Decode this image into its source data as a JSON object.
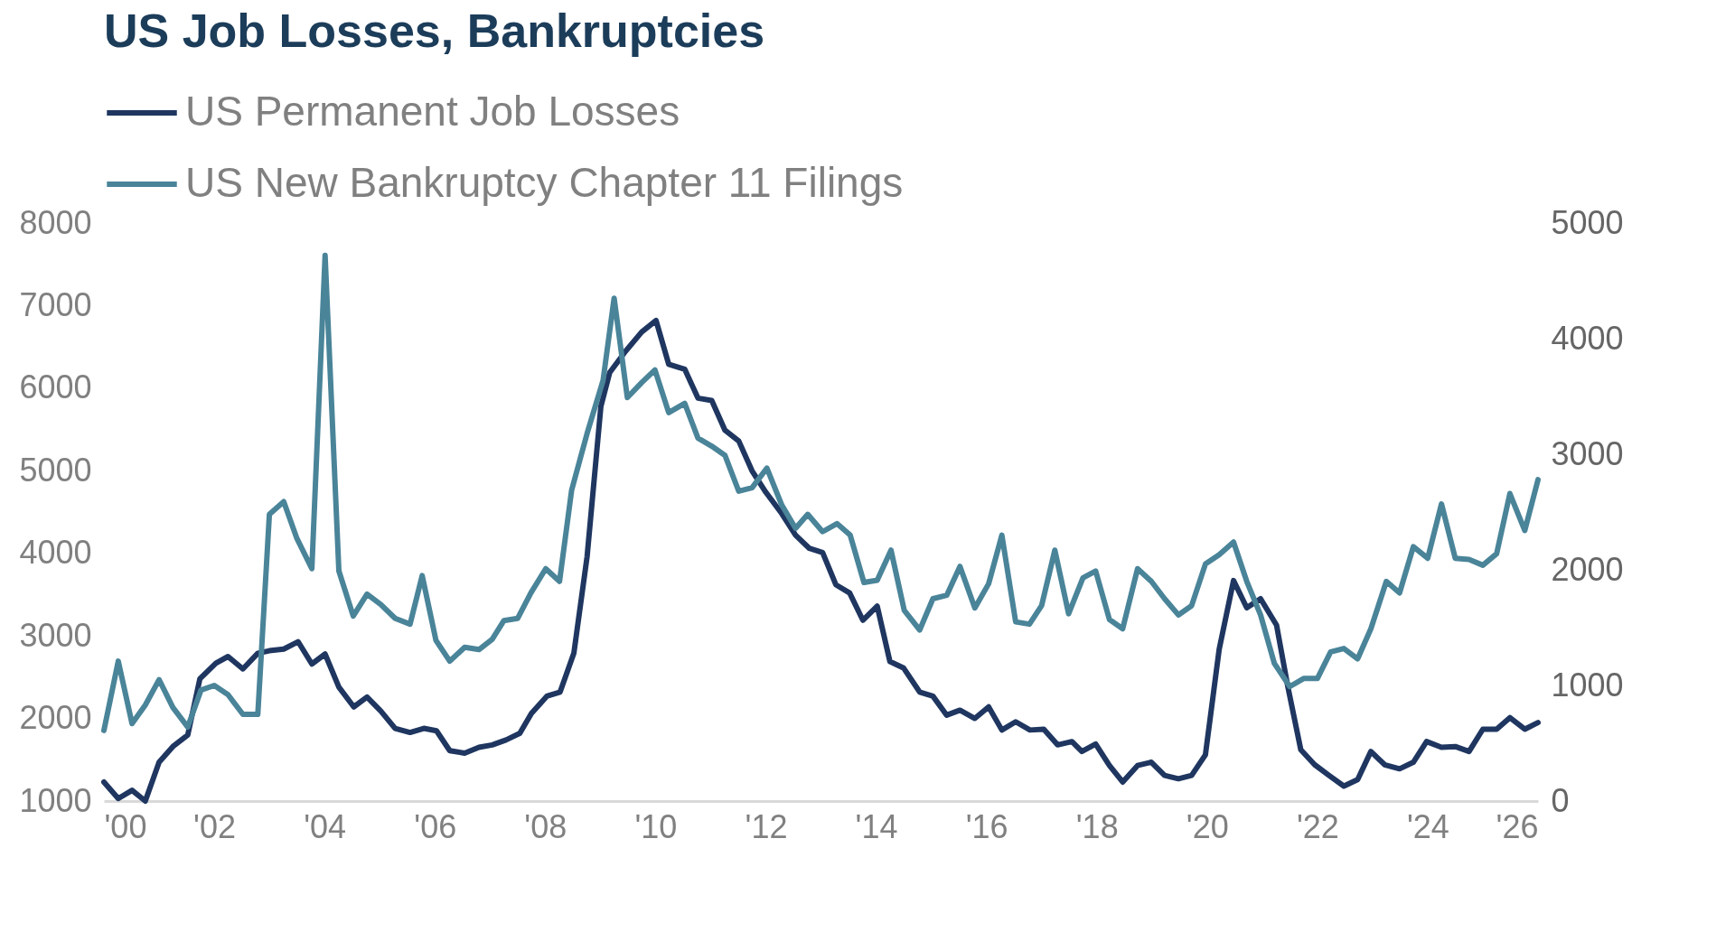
{
  "chart_data": {
    "type": "line",
    "title": "US Job Losses, Bankruptcies",
    "series": [
      {
        "name": "US Permanent Job Losses",
        "color": "#1f3660",
        "x": [
          2000.0,
          2000.26,
          2000.51,
          2000.75,
          2001.0,
          2001.25,
          2001.52,
          2001.74,
          2002.03,
          2002.25,
          2002.52,
          2002.79,
          2003.0,
          2003.26,
          2003.52,
          2003.77,
          2004.01,
          2004.26,
          2004.53,
          2004.77,
          2005.02,
          2005.28,
          2005.55,
          2005.8,
          2006.03,
          2006.27,
          2006.54,
          2006.8,
          2007.04,
          2007.29,
          2007.54,
          2007.75,
          2008.03,
          2008.27,
          2008.52,
          2008.76,
          2009.01,
          2009.17,
          2009.46,
          2009.75,
          2010.01,
          2010.24,
          2010.53,
          2010.77,
          2011.02,
          2011.26,
          2011.51,
          2011.75,
          2012.0,
          2012.29,
          2012.54,
          2012.79,
          2013.03,
          2013.27,
          2013.52,
          2013.76,
          2014.02,
          2014.25,
          2014.5,
          2014.79,
          2015.03,
          2015.28,
          2015.52,
          2015.79,
          2016.04,
          2016.28,
          2016.53,
          2016.79,
          2017.04,
          2017.29,
          2017.55,
          2017.73,
          2017.98,
          2018.23,
          2018.47,
          2018.74,
          2018.99,
          2019.23,
          2019.48,
          2019.72,
          2019.97,
          2020.22,
          2020.48,
          2020.72,
          2020.97,
          2021.26,
          2021.46,
          2021.7,
          2021.95,
          2022.21,
          2022.48,
          2022.73,
          2022.97,
          2023.22,
          2023.49,
          2023.74,
          2023.98,
          2024.25,
          2024.5,
          2024.75,
          2025.0,
          2025.25,
          2025.49,
          2025.76,
          2026.0
        ],
        "values": [
          1230,
          1030,
          1130,
          1000,
          1470,
          1660,
          1800,
          2480,
          2670,
          2750,
          2600,
          2790,
          2820,
          2840,
          2930,
          2660,
          2780,
          2380,
          2140,
          2260,
          2090,
          1880,
          1830,
          1880,
          1850,
          1610,
          1580,
          1650,
          1680,
          1740,
          1820,
          2060,
          2270,
          2320,
          2790,
          3960,
          5780,
          6190,
          6450,
          6680,
          6820,
          6290,
          6230,
          5880,
          5850,
          5490,
          5360,
          5000,
          4740,
          4480,
          4220,
          4060,
          4010,
          3620,
          3520,
          3190,
          3360,
          2690,
          2610,
          2320,
          2270,
          2040,
          2100,
          2000,
          2140,
          1860,
          1960,
          1860,
          1870,
          1680,
          1720,
          1600,
          1690,
          1430,
          1230,
          1430,
          1470,
          1310,
          1270,
          1310,
          1560,
          2840,
          3670,
          3340,
          3450,
          3130,
          2400,
          1620,
          1440,
          1310,
          1180,
          1260,
          1600,
          1440,
          1390,
          1470,
          1720,
          1650,
          1660,
          1600,
          1870,
          1870,
          2010,
          1870,
          1950
        ]
      },
      {
        "name": "US New Bankruptcy Chapter 11 Filings",
        "color": "#4a8499",
        "axis": "y2",
        "x": [
          2000.0,
          2000.26,
          2000.51,
          2000.75,
          2001.0,
          2001.25,
          2001.52,
          2001.76,
          2002.0,
          2002.25,
          2002.52,
          2002.79,
          2003.0,
          2003.26,
          2003.5,
          2003.77,
          2004.01,
          2004.26,
          2004.52,
          2004.77,
          2005.02,
          2005.28,
          2005.55,
          2005.77,
          2006.02,
          2006.27,
          2006.54,
          2006.8,
          2007.04,
          2007.25,
          2007.5,
          2007.74,
          2008.01,
          2008.26,
          2008.48,
          2008.76,
          2009.05,
          2009.25,
          2009.49,
          2009.75,
          2009.99,
          2010.24,
          2010.53,
          2010.77,
          2011.02,
          2011.26,
          2011.51,
          2011.75,
          2012.02,
          2012.29,
          2012.54,
          2012.76,
          2013.03,
          2013.29,
          2013.53,
          2013.78,
          2014.02,
          2014.27,
          2014.51,
          2014.79,
          2015.03,
          2015.28,
          2015.52,
          2015.79,
          2016.04,
          2016.28,
          2016.53,
          2016.78,
          2017.0,
          2017.24,
          2017.49,
          2017.75,
          2017.98,
          2018.23,
          2018.47,
          2018.74,
          2018.99,
          2019.23,
          2019.48,
          2019.72,
          2019.97,
          2020.22,
          2020.48,
          2020.72,
          2020.97,
          2021.22,
          2021.5,
          2021.75,
          2022.0,
          2022.24,
          2022.48,
          2022.73,
          2022.97,
          2023.25,
          2023.49,
          2023.74,
          2024.0,
          2024.25,
          2024.5,
          2024.75,
          2025.0,
          2025.25,
          2025.49,
          2025.76,
          2026.0
        ],
        "values": [
          610,
          1210,
          670,
          830,
          1050,
          810,
          640,
          960,
          1000,
          920,
          750,
          750,
          2480,
          2590,
          2270,
          2010,
          4720,
          1990,
          1600,
          1790,
          1700,
          1580,
          1530,
          1950,
          1390,
          1210,
          1330,
          1310,
          1400,
          1560,
          1580,
          1800,
          2010,
          1900,
          2690,
          3180,
          3640,
          4350,
          3490,
          3620,
          3730,
          3360,
          3440,
          3140,
          3070,
          2990,
          2680,
          2710,
          2880,
          2560,
          2360,
          2480,
          2330,
          2400,
          2300,
          1890,
          1910,
          2170,
          1650,
          1480,
          1750,
          1780,
          2030,
          1670,
          1880,
          2300,
          1550,
          1530,
          1690,
          2170,
          1620,
          1930,
          1990,
          1570,
          1490,
          2010,
          1900,
          1750,
          1610,
          1690,
          2050,
          2130,
          2240,
          1900,
          1610,
          1190,
          990,
          1060,
          1060,
          1290,
          1320,
          1230,
          1490,
          1900,
          1800,
          2200,
          2100,
          2570,
          2100,
          2090,
          2040,
          2140,
          2660,
          2340,
          2780
        ]
      }
    ],
    "xlim": [
      2000,
      2026
    ],
    "xticks": [
      {
        "value": 2000,
        "label": "'00"
      },
      {
        "value": 2002,
        "label": "'02"
      },
      {
        "value": 2004,
        "label": "'04"
      },
      {
        "value": 2006,
        "label": "'06"
      },
      {
        "value": 2008,
        "label": "'08"
      },
      {
        "value": 2010,
        "label": "'10"
      },
      {
        "value": 2012,
        "label": "'12"
      },
      {
        "value": 2014,
        "label": "'14"
      },
      {
        "value": 2016,
        "label": "'16"
      },
      {
        "value": 2018,
        "label": "'18"
      },
      {
        "value": 2020,
        "label": "'20"
      },
      {
        "value": 2022,
        "label": "'22"
      },
      {
        "value": 2024,
        "label": "'24"
      },
      {
        "value": 2026,
        "label": "'26"
      }
    ],
    "ylim": [
      1000,
      8000
    ],
    "yticks": [
      1000,
      2000,
      3000,
      4000,
      5000,
      6000,
      7000,
      8000
    ],
    "y2lim": [
      0,
      5000
    ],
    "y2ticks": [
      0,
      1000,
      2000,
      3000,
      4000,
      5000
    ],
    "legend": "top"
  }
}
